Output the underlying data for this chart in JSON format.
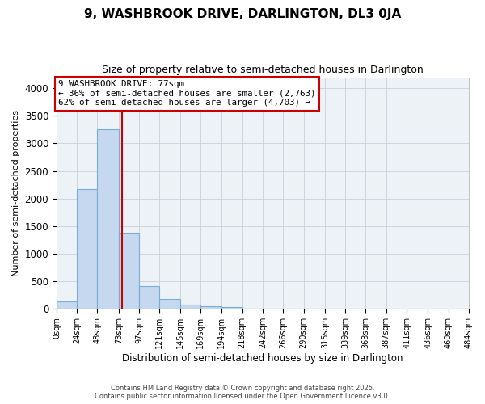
{
  "title": "9, WASHBROOK DRIVE, DARLINGTON, DL3 0JA",
  "subtitle": "Size of property relative to semi-detached houses in Darlington",
  "xlabel": "Distribution of semi-detached houses by size in Darlington",
  "ylabel": "Number of semi-detached properties",
  "property_size": 77,
  "pct_smaller": 36,
  "count_smaller": 2763,
  "pct_larger": 62,
  "count_larger": 4703,
  "bin_labels": [
    "0sqm",
    "24sqm",
    "48sqm",
    "73sqm",
    "97sqm",
    "121sqm",
    "145sqm",
    "169sqm",
    "194sqm",
    "218sqm",
    "242sqm",
    "266sqm",
    "290sqm",
    "315sqm",
    "339sqm",
    "363sqm",
    "387sqm",
    "411sqm",
    "436sqm",
    "460sqm",
    "484sqm"
  ],
  "bin_edges": [
    0,
    24,
    48,
    73,
    97,
    121,
    145,
    169,
    194,
    218,
    242,
    266,
    290,
    315,
    339,
    363,
    387,
    411,
    436,
    460,
    484
  ],
  "bar_heights": [
    130,
    2170,
    3250,
    1380,
    420,
    185,
    80,
    55,
    30,
    10,
    5,
    2,
    1,
    0,
    0,
    0,
    0,
    0,
    0,
    0
  ],
  "bar_color": "#c5d8f0",
  "bar_edge_color": "#7aadd4",
  "line_color": "#cc0000",
  "grid_color": "#c8d0d8",
  "bg_color": "#edf2f7",
  "annotation_box_color": "#ffffff",
  "annotation_box_edge": "#cc0000",
  "ylim": [
    0,
    4200
  ],
  "yticks": [
    0,
    500,
    1000,
    1500,
    2000,
    2500,
    3000,
    3500,
    4000
  ],
  "footer_line1": "Contains HM Land Registry data © Crown copyright and database right 2025.",
  "footer_line2": "Contains public sector information licensed under the Open Government Licence v3.0."
}
